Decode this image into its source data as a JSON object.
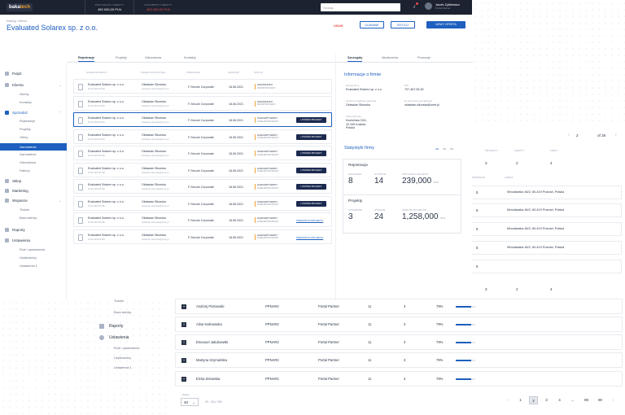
{
  "topbar": {
    "logo_a": "baka",
    "logo_b": "tech",
    "credit1_label": "PRZYZNANY KREDYT",
    "credit1_value": "450 000,00 PLN",
    "credit2_label": "DOSTĘPNY KREDYT",
    "credit2_value": "450 000,00 PLN",
    "search_placeholder": "Szukaj...",
    "user_name": "Jacek Zytkiewicz",
    "user_role": "Portal Partner"
  },
  "header": {
    "breadcrumb": "Katalog / Klienci",
    "title": "Evaluated Solarex sp. z o.o.",
    "status": "USUŃ",
    "btn1": "ULUBIANE",
    "btn2": "EDYTUJ",
    "btn3": "NOWY OFERTA"
  },
  "sidebar": {
    "items": [
      {
        "label": "Pulpit"
      },
      {
        "label": "Klienta"
      },
      {
        "label": "Klienty"
      },
      {
        "label": "Kontakty"
      },
      {
        "label": "Sprzedaż"
      },
      {
        "label": "Rejestracje"
      },
      {
        "label": "Projekty"
      },
      {
        "label": "Oferty"
      },
      {
        "label": "Zamówienia"
      },
      {
        "label": "Zamówienie"
      },
      {
        "label": "Odnowienia"
      },
      {
        "label": "Faktury"
      },
      {
        "label": "Sklep"
      },
      {
        "label": "Marketing"
      },
      {
        "label": "Wsparcie"
      },
      {
        "label": "Tickets"
      },
      {
        "label": "Baza wiedzy"
      },
      {
        "label": "Raporty"
      },
      {
        "label": "Ustawienia"
      },
      {
        "label": "Role i uprawnienia"
      },
      {
        "label": "Użytkownicy"
      },
      {
        "label": "Ustawienia 1"
      }
    ]
  },
  "tabs": [
    "Rejestracje",
    "Projekty",
    "Odnowienia",
    "Kontakty"
  ],
  "table_headers": [
    "NAZWA PROJEKTU",
    "OSOBA KONTAKTOWA",
    "PRODUCENT",
    "WAŻNOŚĆ",
    "STATUS"
  ],
  "rows": [
    {
      "name": "Evaluated Solarex sp. z o.o.",
      "id": "3C1F-9KF3S-8D",
      "contact": "Oktawian Sikorska",
      "email": "oktawian.sikorska@onet.pl",
      "vendor": "F-Secure Corporate",
      "date": "18.06.2021",
      "status": "ZAKOŃCZONY",
      "status2": "ROZPATRYWANY",
      "action": ""
    },
    {
      "name": "Evaluated Solarex sp. z o.o.",
      "id": "3C1F-9KF3S-8D",
      "contact": "Oktawian Sikorska",
      "email": "oktawian.sikorska@onet.pl",
      "vendor": "F-Secure Corporate",
      "date": "18.06.2021",
      "status": "ZAKOŃCZONY",
      "status2": "ROZPATRYWANY",
      "action": ""
    },
    {
      "name": "Evaluated Solarex sp. z o.o.",
      "id": "3C1F-9KF3S-8D",
      "contact": "Oktawian Sikorska",
      "email": "oktawian.sikorska@onet.pl",
      "vendor": "F-Secure Corporate",
      "date": "18.06.2021",
      "status": "ZAAKCEPTOWANY",
      "status2": "ZAREJESTROWANY",
      "action": "UTWÓRZ PROJEKT"
    },
    {
      "name": "Evaluated Solarex sp. z o.o.",
      "id": "3C1F-9KF3S-8D",
      "contact": "Oktawian Sikorska",
      "email": "oktawian.sikorska@onet.pl",
      "vendor": "F-Secure Corporate",
      "date": "18.06.2021",
      "status": "ZAAKCEPTOWANY",
      "status2": "ZAREJESTROWANY",
      "action": "UTWÓRZ PROJEKT"
    },
    {
      "name": "Evaluated Solarex sp. z o.o.",
      "id": "3C1F-9KF3S-8D",
      "contact": "Oktawian Sikorska",
      "email": "oktawian.sikorska@onet.pl",
      "vendor": "F-Secure Corporate",
      "date": "18.06.2021",
      "status": "ZAAKCEPTOWANY",
      "status2": "ZAREJESTROWANY",
      "action": "UTWÓRZ PROJEKT"
    },
    {
      "name": "Evaluated Solarex sp. z o.o.",
      "id": "3C1F-9KF3S-8D",
      "contact": "Oktawian Sikorska",
      "email": "oktawian.sikorska@onet.pl",
      "vendor": "F-Secure Corporate",
      "date": "18.06.2021",
      "status": "ZAAKCEPTOWANY",
      "status2": "ZAREJESTROWANY",
      "action": "UTWÓRZ PROJEKT"
    },
    {
      "name": "Evaluated Solarex sp. z o.o.",
      "id": "3C1F-9KF3S-8D",
      "contact": "Oktawian Sikorska",
      "email": "oktawian.sikorska@onet.pl",
      "vendor": "F-Secure Corporate",
      "date": "18.06.2021",
      "status": "ZAAKCEPTOWANY",
      "status2": "ZAREJESTROWANY",
      "action": "UTWÓRZ PROJEKT"
    },
    {
      "name": "Evaluated Solarex sp. z o.o.",
      "id": "3C1F-9KF3S-8D",
      "contact": "Oktawian Sikorska",
      "email": "oktawian.sikorska@onet.pl",
      "vendor": "F-Secure Corporate",
      "date": "18.06.2021",
      "status": "ZAAKCEPTOWANY",
      "status2": "ZAREJESTROWANY",
      "action": "UTWÓRZ PROJEKT"
    },
    {
      "name": "Evaluated Solarex sp. z o.o.",
      "id": "3C1F-9KF3S-8D",
      "contact": "Oktawian Sikorska",
      "email": "oktawian.sikorska@onet.pl",
      "vendor": "F-Secure Corporate",
      "date": "18.06.2021",
      "status": "ZAAKCEPTOWANY",
      "status2": "ZAREJESTROWANY",
      "action": "PRZEJDŹ DO PROJEKTU"
    },
    {
      "name": "Evaluated Solarex sp. z o.o.",
      "id": "3C1F-9KF3S-8D",
      "contact": "Oktawian Sikorska",
      "email": "oktawian.sikorska@onet.pl",
      "vendor": "F-Secure Corporate",
      "date": "18.06.2021",
      "status": "ZAAKCEPTOWANY",
      "status2": "ZAREJESTROWANY",
      "action": "PRZEJDŹ DO PROJEKTU"
    }
  ],
  "panel": {
    "tabs": [
      "Szczegóły",
      "Wydarzenia",
      "Promocje"
    ],
    "info_title": "Informacje o firmie",
    "company_label": "Nazwa firmy",
    "company": "Evaluated Solarex sp. z o.o.",
    "nip_label": "NIP",
    "nip": "707-467-05-82",
    "contact_label": "Osoba kontaktowa (główna)",
    "contact": "Oktawian Sikorska",
    "email_label": "E-mail osoby kontaktowej",
    "email": "oktawian.sikorska@onet.pl",
    "address_label": "Adres głównie",
    "address1": "Kochelska 23/4,",
    "address2": "22-345 Kraków",
    "address3": "Polska",
    "stats_title": "Statystyki firmy",
    "stats_periods": [
      "1M",
      "3M",
      "6M"
    ],
    "reg_title": "Rejestracje",
    "reg_m1_label": "ZGŁOSZONE",
    "reg_m1": "8",
    "reg_m2_label": "W TRAKCIE",
    "reg_m2": "14",
    "reg_m3_label": "PRZYCHÓD Z CEN NETTO",
    "reg_m3": "239,000",
    "reg_unit": "PLN",
    "proj_title": "Projekty",
    "proj_m1_label": "UTWORZONE",
    "proj_m1": "3",
    "proj_m2_label": "WYGRANE",
    "proj_m2": "24",
    "proj_m3_label": "WARTOŚĆ PROJEKTÓW",
    "proj_m3": "1,258,000",
    "proj_unit": "PLN"
  },
  "right_table": {
    "page": "2",
    "of": "of 26",
    "headers": [
      "PROJEKTY",
      "OFERTY",
      "FIRMY"
    ],
    "counts": [
      {
        "a": "3",
        "b": "2",
        "c": "4"
      }
    ],
    "col_headers": [
      "WSPARCIE",
      "ADRES"
    ],
    "rows": [
      {
        "n": "5",
        "addr": "Wrocławska 46/2, 60-419 Poznań, Polska"
      },
      {
        "n": "5",
        "addr": "Wrocławska 46/2, 60-419 Poznań, Polska"
      },
      {
        "n": "5",
        "addr": "Wrocławska 46/2, 60-419 Poznań, Polska"
      },
      {
        "n": "5",
        "addr": "Wrocławska 46/2, 60-419 Poznań, Polska"
      },
      {
        "n": "5",
        "addr": ""
      }
    ],
    "row_last_a": "3",
    "row_last_b": "2",
    "row_last_c": "4"
  },
  "bottom_rows": [
    {
      "name": "Andrzej Piotrowski",
      "code": "PPNAR2",
      "role": "Portal Partner",
      "a": "11",
      "b": "3",
      "pct": "79%",
      "fill": 0.79
    },
    {
      "name": "Alina Kalinowska",
      "code": "PPNAR2",
      "role": "Portal Partner",
      "a": "11",
      "b": "3",
      "pct": "79%",
      "fill": 0.79
    },
    {
      "name": "Emanuel Jakubowski",
      "code": "PPNAR2",
      "role": "Portal Partner",
      "a": "11",
      "b": "3",
      "pct": "79%",
      "fill": 0.79
    },
    {
      "name": "Martyna Szymańska",
      "code": "PPNAR2",
      "role": "Portal Partner",
      "a": "11",
      "b": "3",
      "pct": "79%",
      "fill": 0.79
    },
    {
      "name": "Elvira Zelowska",
      "code": "PPNAR2",
      "role": "Portal Partner",
      "a": "11",
      "b": "3",
      "pct": "79%",
      "fill": 0.79
    }
  ],
  "lower_side": {
    "items": [
      "Tickets",
      "Baza wiedzy",
      "Raporty",
      "Ustawienia",
      "Role i uprawnienia",
      "Użytkownicy",
      "Ustawienia 1"
    ]
  },
  "pagination": {
    "per_page_label": "Pokaż",
    "per_page": "40",
    "range": "20 - 40 z 796",
    "pages": [
      "1",
      "2",
      "3",
      "4",
      "...",
      "89",
      "90"
    ]
  },
  "colors": {
    "accent": "#1e5fbf",
    "topbar": "#1c2230",
    "danger": "#e64a4a",
    "warning": "#f0a030"
  }
}
